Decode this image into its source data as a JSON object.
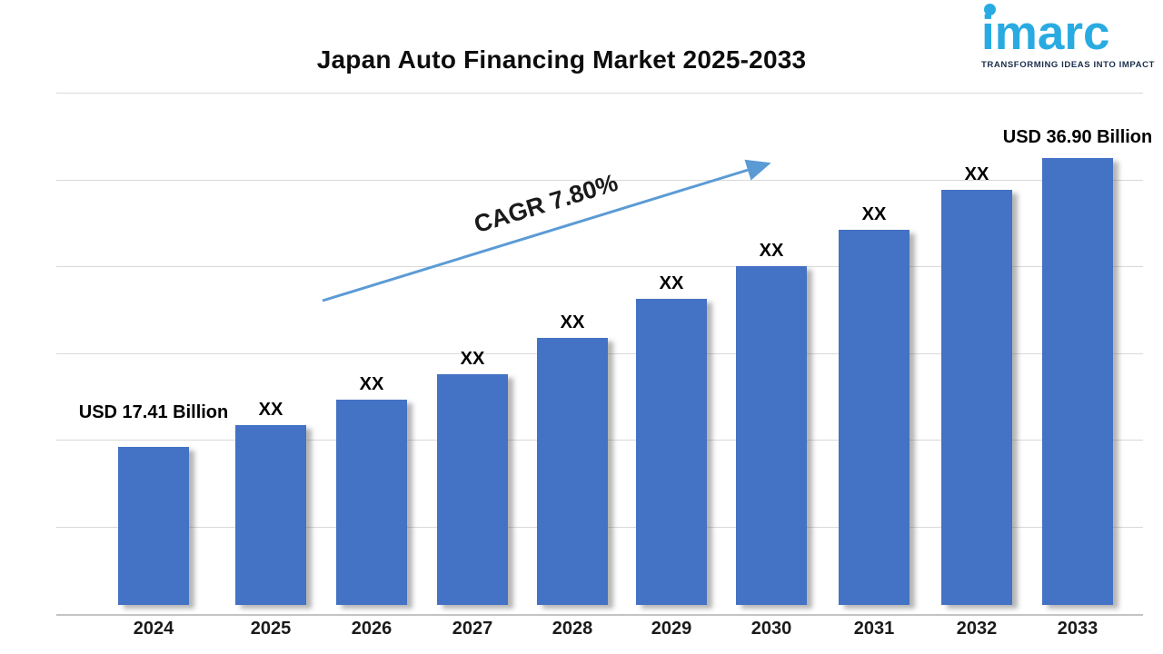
{
  "header": {
    "title": "Japan Auto Financing Market 2025-2033"
  },
  "logo": {
    "brand": "imarc",
    "tagline": "TRANSFORMING IDEAS INTO IMPACT",
    "brand_color": "#29ABE2",
    "tagline_color": "#1B2E4D"
  },
  "annotation": {
    "cagr_label": "CAGR 7.80%"
  },
  "chart_data": {
    "type": "bar",
    "title": "Japan Auto Financing Market 2025-2033",
    "xlabel": "",
    "ylabel": "",
    "unit": "USD Billion",
    "categories": [
      "2024",
      "2025",
      "2026",
      "2027",
      "2028",
      "2029",
      "2030",
      "2031",
      "2032",
      "2033"
    ],
    "values": [
      17.41,
      18.88,
      20.6,
      22.31,
      24.77,
      27.4,
      29.61,
      32.06,
      34.76,
      36.9
    ],
    "value_labels": [
      "USD 17.41 Billion",
      "XX",
      "XX",
      "XX",
      "XX",
      "XX",
      "XX",
      "XX",
      "XX",
      "USD 36.90 Billion"
    ],
    "values_note": "Only 2024 and 2033 values are printed on the chart; 2025-2032 are masked as XX and estimated from bar heights",
    "cagr": "7.80%",
    "bar_color": "#4472C4",
    "trend_arrow_color": "#5B9BD5",
    "gridlines": "horizontal",
    "y_axis_labels_visible": false,
    "legend": "none"
  }
}
